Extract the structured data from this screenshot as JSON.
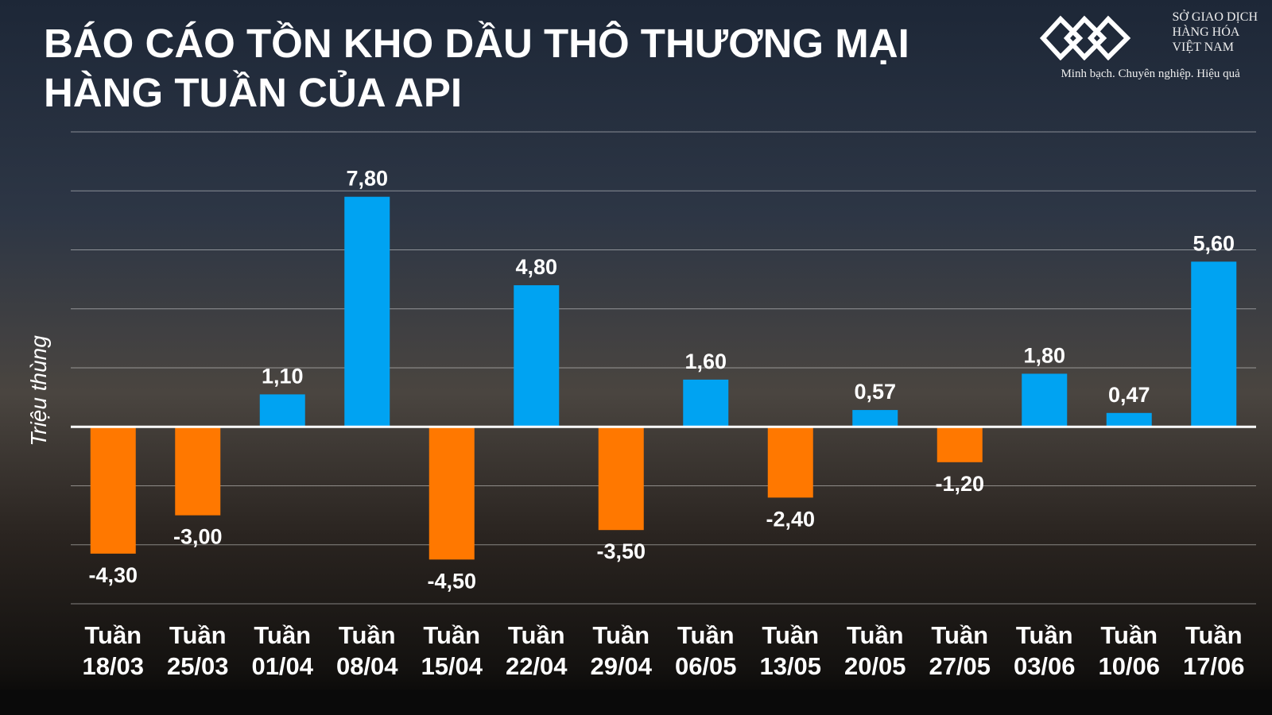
{
  "chart_data": {
    "type": "bar",
    "title": "BÁO CÁO TỒN KHO DẦU THÔ THƯƠNG MẠI HÀNG TUẦN CỦA API",
    "y_label": "Triệu thùng",
    "categories": [
      "Tuần 18/03",
      "Tuần 25/03",
      "Tuần 01/04",
      "Tuần 08/04",
      "Tuần 15/04",
      "Tuần 22/04",
      "Tuần 29/04",
      "Tuần 06/05",
      "Tuần 13/05",
      "Tuần 20/05",
      "Tuần 27/05",
      "Tuần 03/06",
      "Tuần 10/06",
      "Tuần 17/06"
    ],
    "values": [
      -4.3,
      -3.0,
      1.1,
      7.8,
      -4.5,
      4.8,
      -3.5,
      1.6,
      -2.4,
      0.57,
      -1.2,
      1.8,
      0.47,
      5.6
    ],
    "value_labels": [
      "-4,30",
      "-3,00",
      "1,10",
      "7,80",
      "-4,50",
      "4,80",
      "-3,50",
      "1,60",
      "-2,40",
      "0,57",
      "-1,20",
      "1,80",
      "0,47",
      "5,60"
    ],
    "color_positive": "#00a3f2",
    "color_negative": "#ff7800",
    "ylim": [
      -6,
      10
    ],
    "yticks": [
      -6,
      -4,
      -2,
      0,
      2,
      4,
      6,
      8,
      10
    ],
    "grid": true
  },
  "logo": {
    "line1": "SỞ GIAO DỊCH",
    "line2": "HÀNG HÓA",
    "line3": "VIỆT NAM",
    "tagline": "Minh bạch. Chuyên nghiệp. Hiệu quả"
  }
}
